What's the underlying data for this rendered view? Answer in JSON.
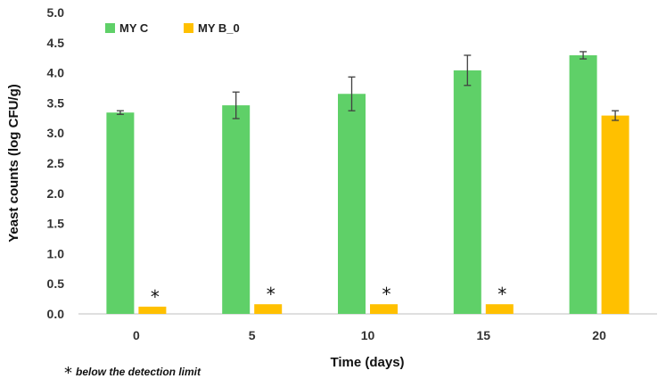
{
  "chart_data": {
    "type": "bar",
    "title": "",
    "xlabel": "Time (days)",
    "ylabel": "Yeast counts (log CFU/g)",
    "ylim": [
      0,
      5.0
    ],
    "yticks": [
      "0.0",
      "0.5",
      "1.0",
      "1.5",
      "2.0",
      "2.5",
      "3.0",
      "3.5",
      "4.0",
      "4.5",
      "5.0"
    ],
    "grid": false,
    "legend_position": "top-left",
    "categories": [
      "0",
      "5",
      "10",
      "15",
      "20"
    ],
    "series": [
      {
        "name": "MY C",
        "color": "#5FD068",
        "values": [
          3.34,
          3.46,
          3.65,
          4.04,
          4.29
        ],
        "errors": [
          0.03,
          0.22,
          0.28,
          0.25,
          0.06
        ]
      },
      {
        "name": "MY B_0",
        "color": "#FFC000",
        "values": [
          0.12,
          0.16,
          0.16,
          0.16,
          3.29
        ],
        "errors": [
          0,
          0,
          0,
          0,
          0.08
        ]
      }
    ],
    "annotations": [
      {
        "text": "*",
        "category": "0",
        "series": "MY B_0"
      },
      {
        "text": "*",
        "category": "5",
        "series": "MY B_0"
      },
      {
        "text": "*",
        "category": "10",
        "series": "MY B_0"
      },
      {
        "text": "*",
        "category": "15",
        "series": "MY B_0"
      }
    ],
    "footnote": {
      "symbol": "*",
      "text": "below the detection limit"
    }
  }
}
